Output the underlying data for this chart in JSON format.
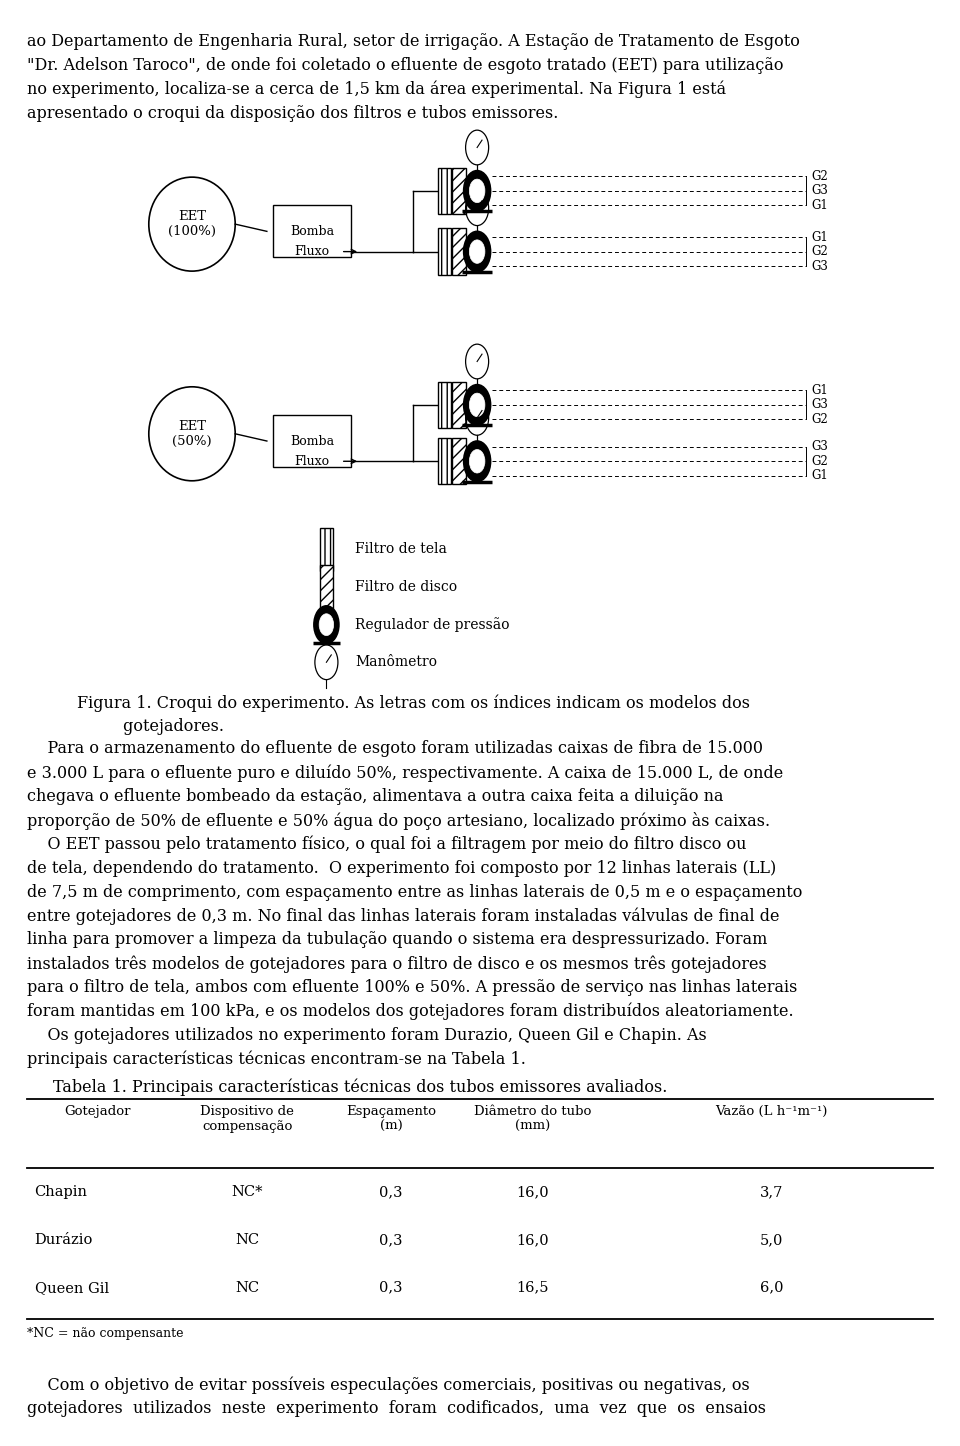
{
  "text_top": [
    "ao Departamento de Engenharia Rural, setor de irrigação. A Estação de Tratamento de Esgoto",
    "\"Dr. Adelson Taroco\", de onde foi coletado o efluente de esgoto tratado (EET) para utilização",
    "no experimento, localiza-se a cerca de 1,5 km da área experimental. Na Figura 1 está",
    "apresentado o croqui da disposição dos filtros e tubos emissores."
  ],
  "figure_caption_1": "Figura 1. Croqui do experimento. As letras com os índices indicam os modelos dos",
  "figure_caption_2": "         gotejadores.",
  "legend_items": [
    "Filtro de tela",
    "Filtro de disco",
    "Regulador de pressão",
    "Manômetro"
  ],
  "text_bottom": [
    "    Para o armazenamento do efluente de esgoto foram utilizadas caixas de fibra de 15.000",
    "e 3.000 L para o efluente puro e diluído 50%, respectivamente. A caixa de 15.000 L, de onde",
    "chegava o efluente bombeado da estação, alimentava a outra caixa feita a diluição na",
    "proporção de 50% de efluente e 50% água do poço artesiano, localizado próximo às caixas.",
    "    O EET passou pelo tratamento físico, o qual foi a filtragem por meio do filtro disco ou",
    "de tela, dependendo do tratamento.  O experimento foi composto por 12 linhas laterais (LL)",
    "de 7,5 m de comprimento, com espaçamento entre as linhas laterais de 0,5 m e o espaçamento",
    "entre gotejadores de 0,3 m. No final das linhas laterais foram instaladas válvulas de final de",
    "linha para promover a limpeza da tubulação quando o sistema era despressurizado. Foram",
    "instalados três modelos de gotejadores para o filtro de disco e os mesmos três gotejadores",
    "para o filtro de tela, ambos com efluente 100% e 50%. A pressão de serviço nas linhas laterais",
    "foram mantidas em 100 kPa, e os modelos dos gotejadores foram distribuídos aleatoriamente.",
    "    Os gotejadores utilizados no experimento foram Durazio, Queen Gil e Chapin. As",
    "principais características técnicas encontram-se na Tabela 1."
  ],
  "table_title": "Tabela 1. Principais características técnicas dos tubos emissores avaliados.",
  "table_headers": [
    "Gotejador",
    "Dispositivo de\ncompensação",
    "Espaçamento\n(m)",
    "Diâmetro do tubo\n(mm)",
    "Vazão (L h⁻¹m⁻¹)"
  ],
  "table_rows": [
    [
      "Chapin",
      "NC*",
      "0,3",
      "16,0",
      "3,7"
    ],
    [
      "Durázio",
      "NC",
      "0,3",
      "16,0",
      "5,0"
    ],
    [
      "Queen Gil",
      "NC",
      "0,3",
      "16,5",
      "6,0"
    ]
  ],
  "table_footnote": "*NC = não compensante",
  "text_final": [
    "    Com o objetivo de evitar possíveis especulações comerciais, positivas ou negativas, os",
    "gotejadores  utilizados  neste  experimento  foram  codificados,  uma  vez  que  os  ensaios"
  ],
  "bg_color": "#ffffff",
  "text_color": "#000000"
}
